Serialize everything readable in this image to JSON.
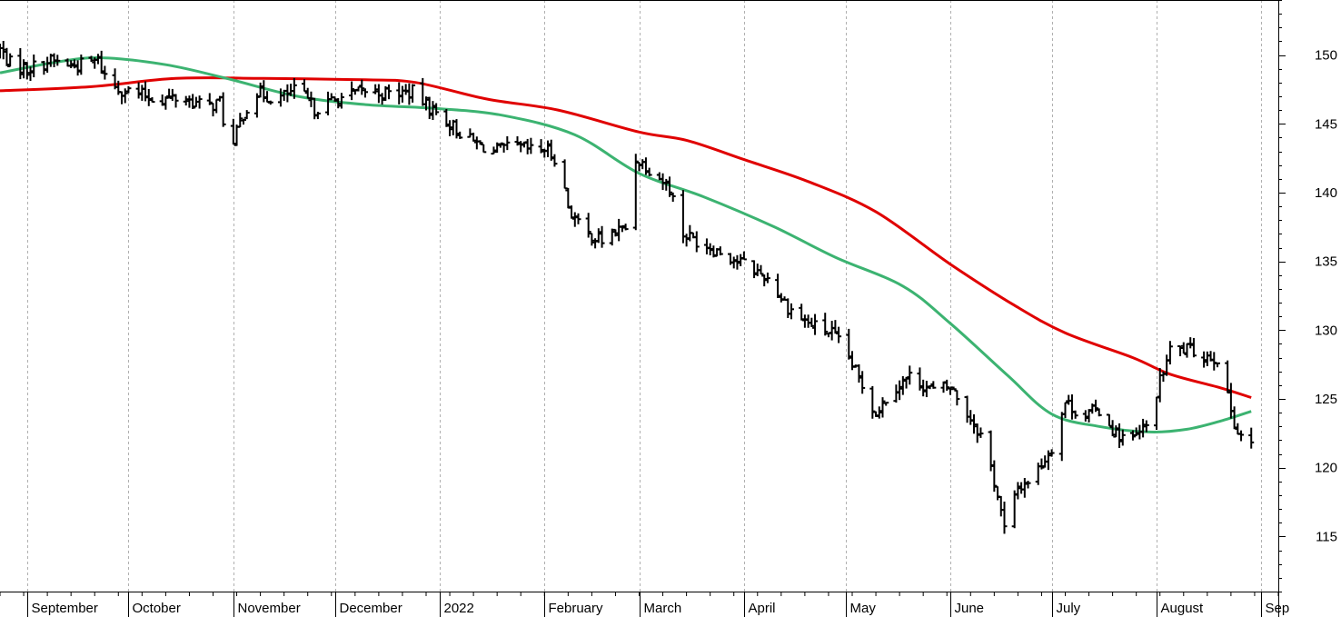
{
  "chart_data": {
    "type": "line",
    "chart_style": "ohlc-price-bars with two moving averages",
    "title": "",
    "xlabel": "",
    "ylabel": "",
    "ylim": [
      111,
      154
    ],
    "y_axis_side": "right",
    "yticks": [
      115,
      120,
      125,
      130,
      135,
      140,
      145,
      150
    ],
    "x_axis": {
      "start": "2021-08-24",
      "end": "2022-09-06",
      "tick_labels": [
        {
          "label": "September",
          "date": "2021-09-01"
        },
        {
          "label": "October",
          "date": "2021-10-01"
        },
        {
          "label": "November",
          "date": "2021-11-01"
        },
        {
          "label": "December",
          "date": "2021-12-01"
        },
        {
          "label": "2022",
          "date": "2022-01-01"
        },
        {
          "label": "February",
          "date": "2022-02-01"
        },
        {
          "label": "March",
          "date": "2022-03-01"
        },
        {
          "label": "April",
          "date": "2022-04-01"
        },
        {
          "label": "May",
          "date": "2022-05-01"
        },
        {
          "label": "June",
          "date": "2022-06-01"
        },
        {
          "label": "July",
          "date": "2022-07-01"
        },
        {
          "label": "August",
          "date": "2022-08-01"
        },
        {
          "label": "Sep",
          "date": "2022-09-01"
        }
      ]
    },
    "grid": "vertical dotted at month starts",
    "colors": {
      "price": "#000000",
      "ma_short": "#3cb371",
      "ma_long": "#e00000",
      "grid": "#b0b0b0",
      "axis": "#000000"
    },
    "price_anchors": [
      [
        "2021-08-24",
        150.4
      ],
      [
        "2021-08-27",
        149.4
      ],
      [
        "2021-09-01",
        149.0
      ],
      [
        "2021-09-08",
        149.6
      ],
      [
        "2021-09-15",
        149.2
      ],
      [
        "2021-09-22",
        149.6
      ],
      [
        "2021-09-25",
        148.0
      ],
      [
        "2021-09-28",
        147.6
      ],
      [
        "2021-10-03",
        147.2
      ],
      [
        "2021-10-10",
        146.8
      ],
      [
        "2021-10-17",
        146.9
      ],
      [
        "2021-10-24",
        146.2
      ],
      [
        "2021-10-28",
        146.6
      ],
      [
        "2021-10-30",
        144.0
      ],
      [
        "2021-11-01",
        143.4
      ],
      [
        "2021-11-03",
        145.2
      ],
      [
        "2021-11-07",
        147.3
      ],
      [
        "2021-11-14",
        146.8
      ],
      [
        "2021-11-20",
        147.5
      ],
      [
        "2021-11-25",
        146.1
      ],
      [
        "2021-12-03",
        146.9
      ],
      [
        "2021-12-10",
        147.4
      ],
      [
        "2021-12-17",
        147.2
      ],
      [
        "2021-12-24",
        147.3
      ],
      [
        "2021-12-30",
        146.0
      ],
      [
        "2022-01-05",
        144.8
      ],
      [
        "2022-01-10",
        143.8
      ],
      [
        "2022-01-17",
        143.0
      ],
      [
        "2022-01-24",
        143.3
      ],
      [
        "2022-01-29",
        143.0
      ],
      [
        "2022-02-01",
        143.2
      ],
      [
        "2022-02-05",
        142.4
      ],
      [
        "2022-02-08",
        139.0
      ],
      [
        "2022-02-12",
        137.2
      ],
      [
        "2022-02-18",
        136.5
      ],
      [
        "2022-02-22",
        137.2
      ],
      [
        "2022-02-25",
        137.4
      ],
      [
        "2022-02-28",
        142.5
      ],
      [
        "2022-03-05",
        141.6
      ],
      [
        "2022-03-10",
        140.4
      ],
      [
        "2022-03-14",
        137.0
      ],
      [
        "2022-03-20",
        136.3
      ],
      [
        "2022-03-26",
        135.6
      ],
      [
        "2022-04-01",
        134.8
      ],
      [
        "2022-04-08",
        133.8
      ],
      [
        "2022-04-14",
        131.7
      ],
      [
        "2022-04-20",
        130.5
      ],
      [
        "2022-04-27",
        129.8
      ],
      [
        "2022-05-01",
        128.4
      ],
      [
        "2022-05-05",
        126.5
      ],
      [
        "2022-05-10",
        124.0
      ],
      [
        "2022-05-15",
        125.8
      ],
      [
        "2022-05-20",
        126.6
      ],
      [
        "2022-05-27",
        125.6
      ],
      [
        "2022-06-01",
        125.9
      ],
      [
        "2022-06-07",
        123.6
      ],
      [
        "2022-06-11",
        122.0
      ],
      [
        "2022-06-15",
        118.0
      ],
      [
        "2022-06-17",
        115.5
      ],
      [
        "2022-06-21",
        118.5
      ],
      [
        "2022-06-26",
        119.5
      ],
      [
        "2022-07-01",
        121.5
      ],
      [
        "2022-07-05",
        124.8
      ],
      [
        "2022-07-10",
        123.8
      ],
      [
        "2022-07-15",
        124.2
      ],
      [
        "2022-07-20",
        122.5
      ],
      [
        "2022-07-25",
        122.0
      ],
      [
        "2022-07-30",
        123.2
      ],
      [
        "2022-08-01",
        125.5
      ],
      [
        "2022-08-05",
        128.5
      ],
      [
        "2022-08-10",
        128.6
      ],
      [
        "2022-08-15",
        128.2
      ],
      [
        "2022-08-19",
        128.0
      ],
      [
        "2022-08-22",
        125.0
      ],
      [
        "2022-08-25",
        122.6
      ],
      [
        "2022-08-29",
        121.6
      ]
    ],
    "series": [
      {
        "points": [
          [
            "2021-08-24",
            148.7
          ],
          [
            "2021-09-10",
            149.5
          ],
          [
            "2021-09-23",
            149.8
          ],
          [
            "2021-10-12",
            149.3
          ],
          [
            "2021-10-30",
            148.3
          ],
          [
            "2021-11-20",
            147.0
          ],
          [
            "2021-12-10",
            146.4
          ],
          [
            "2022-01-01",
            146.1
          ],
          [
            "2022-01-20",
            145.6
          ],
          [
            "2022-02-10",
            144.2
          ],
          [
            "2022-03-01",
            141.4
          ],
          [
            "2022-03-20",
            139.7
          ],
          [
            "2022-04-10",
            137.5
          ],
          [
            "2022-04-28",
            135.3
          ],
          [
            "2022-05-18",
            133.2
          ],
          [
            "2022-06-01",
            130.5
          ],
          [
            "2022-06-18",
            126.7
          ],
          [
            "2022-07-01",
            123.9
          ],
          [
            "2022-07-15",
            123.0
          ],
          [
            "2022-07-30",
            122.6
          ],
          [
            "2022-08-10",
            122.8
          ],
          [
            "2022-08-20",
            123.4
          ],
          [
            "2022-08-29",
            124.1
          ]
        ]
      },
      {
        "points": [
          [
            "2021-08-24",
            147.4
          ],
          [
            "2021-09-20",
            147.7
          ],
          [
            "2021-10-15",
            148.3
          ],
          [
            "2021-11-10",
            148.3
          ],
          [
            "2021-12-10",
            148.2
          ],
          [
            "2021-12-25",
            148.0
          ],
          [
            "2022-01-15",
            146.8
          ],
          [
            "2022-02-05",
            146.0
          ],
          [
            "2022-03-01",
            144.4
          ],
          [
            "2022-03-15",
            143.8
          ],
          [
            "2022-04-01",
            142.4
          ],
          [
            "2022-04-20",
            140.8
          ],
          [
            "2022-05-10",
            138.6
          ],
          [
            "2022-06-01",
            134.8
          ],
          [
            "2022-06-20",
            131.8
          ],
          [
            "2022-07-05",
            129.8
          ],
          [
            "2022-07-25",
            128.0
          ],
          [
            "2022-08-05",
            126.8
          ],
          [
            "2022-08-20",
            125.8
          ],
          [
            "2022-08-29",
            125.1
          ]
        ]
      }
    ]
  }
}
